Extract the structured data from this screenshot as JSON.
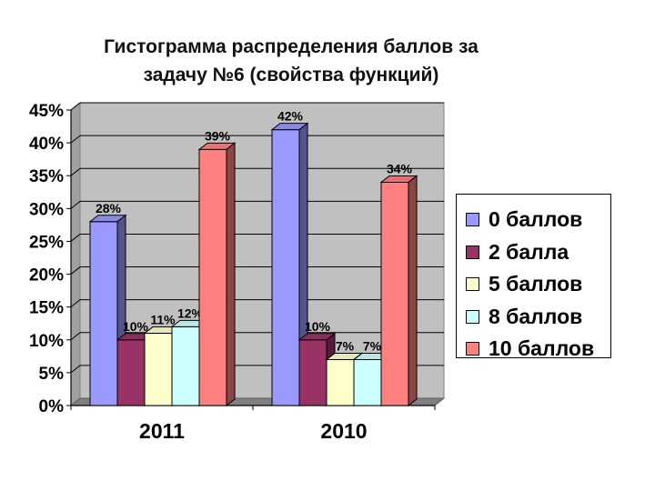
{
  "chart_data": {
    "type": "bar",
    "title": [
      "Гистограмма распределения баллов за",
      "задачу №6 (свойства функций)"
    ],
    "categories": [
      "2011",
      "2010"
    ],
    "series": [
      {
        "name": "0 баллов",
        "color": "#9999FF",
        "values": [
          28,
          42
        ],
        "labels": [
          "28%",
          "42%"
        ]
      },
      {
        "name": "2 балла",
        "color": "#993366",
        "values": [
          10,
          10
        ],
        "labels": [
          "10%",
          "10%"
        ]
      },
      {
        "name": "5 баллов",
        "color": "#FFFFCC",
        "values": [
          11,
          7
        ],
        "labels": [
          "11%",
          "7%"
        ]
      },
      {
        "name": "8 баллов",
        "color": "#CCFFFF",
        "values": [
          12,
          7
        ],
        "labels": [
          "12%",
          "7%"
        ]
      },
      {
        "name": "10 баллов",
        "color": "#FF8080",
        "values": [
          39,
          34
        ],
        "labels": [
          "39%",
          "34%"
        ]
      }
    ],
    "yticks": [
      "0%",
      "5%",
      "10%",
      "15%",
      "20%",
      "25%",
      "30%",
      "35%",
      "40%",
      "45%"
    ],
    "ylim": [
      0,
      45
    ],
    "grid": true,
    "legend": "right",
    "wall_color": "#C0C0C0",
    "floor_color": "#808080"
  }
}
